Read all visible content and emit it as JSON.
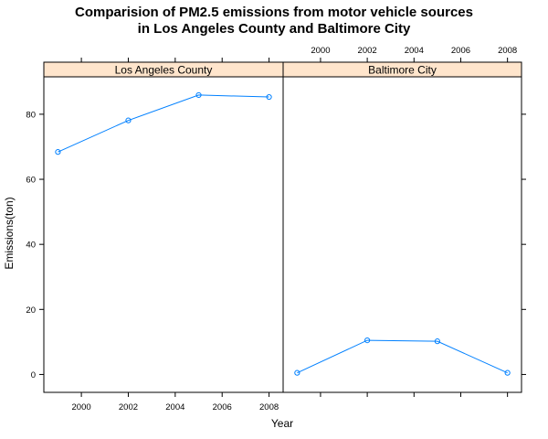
{
  "chart_data": {
    "type": "line",
    "title_line1": "Comparision of PM2.5 emissions from motor vehicle sources",
    "title_line2": "in Los Angeles County and Baltimore City",
    "xlabel": "Year",
    "ylabel": "Emissions(ton)",
    "xlim": [
      1998.4,
      2008.6
    ],
    "ylim": [
      -5.5,
      91.5
    ],
    "xticks": [
      2000,
      2002,
      2004,
      2006,
      2008
    ],
    "yticks": [
      0,
      20,
      40,
      60,
      80
    ],
    "grid": false,
    "colors": {
      "series": "#0080ff",
      "strip_bg": "#ffe5cc",
      "axis": "#000000"
    },
    "panels": [
      {
        "name": "Los Angeles County",
        "x": [
          1999,
          2002,
          2005,
          2008
        ],
        "y": [
          68.4,
          78.1,
          85.9,
          85.3
        ]
      },
      {
        "name": "Baltimore City",
        "x": [
          1999,
          2002,
          2005,
          2008
        ],
        "y": [
          0.5,
          10.5,
          10.2,
          0.5
        ]
      }
    ]
  }
}
